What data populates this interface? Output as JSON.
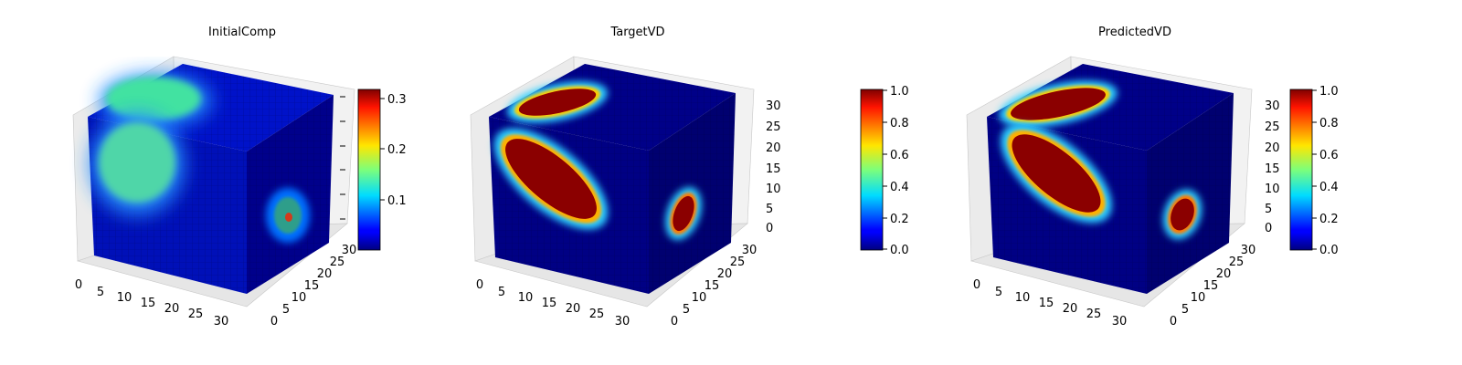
{
  "chart_data": [
    {
      "type": "voxel3d",
      "title": "InitialComp",
      "axis_range": [
        0,
        32
      ],
      "x_ticks": [
        "0",
        "5",
        "10",
        "15",
        "20",
        "25",
        "30"
      ],
      "y_ticks": [
        "0",
        "5",
        "10",
        "15",
        "20",
        "25",
        "30"
      ],
      "z_ticks": [],
      "colorbar": {
        "colormap": "jet",
        "range": [
          0,
          0.33
        ],
        "ticks": [
          "0.1",
          "0.2",
          "0.3"
        ]
      },
      "face_colors": {
        "background": "#00008b",
        "blob_top": "#43e2a1",
        "blob_front": "#4fd6a8",
        "blob_right": "#2f9e8a"
      }
    },
    {
      "type": "voxel3d",
      "title": "TargetVD",
      "axis_range": [
        0,
        32
      ],
      "x_ticks": [
        "0",
        "5",
        "10",
        "15",
        "20",
        "25",
        "30"
      ],
      "y_ticks": [
        "0",
        "5",
        "10",
        "15",
        "20",
        "25",
        "30"
      ],
      "z_ticks": [
        "0",
        "5",
        "10",
        "15",
        "20",
        "25",
        "30"
      ],
      "colorbar": {
        "colormap": "jet",
        "range": [
          0,
          1
        ],
        "ticks": [
          "0.0",
          "0.2",
          "0.4",
          "0.6",
          "0.8",
          "1.0"
        ]
      },
      "face_colors": {
        "background": "#00007f",
        "blob_fill": "#8b0000",
        "blob_edge": "#2fd0ff"
      }
    },
    {
      "type": "voxel3d",
      "title": "PredictedVD",
      "axis_range": [
        0,
        32
      ],
      "x_ticks": [
        "0",
        "5",
        "10",
        "15",
        "20",
        "25",
        "30"
      ],
      "y_ticks": [
        "0",
        "5",
        "10",
        "15",
        "20",
        "25",
        "30"
      ],
      "z_ticks": [
        "0",
        "5",
        "10",
        "15",
        "20",
        "25",
        "30"
      ],
      "colorbar": {
        "colormap": "jet",
        "range": [
          0,
          1
        ],
        "ticks": [
          "0.0",
          "0.2",
          "0.4",
          "0.6",
          "0.8",
          "1.0"
        ]
      },
      "face_colors": {
        "background": "#00007f",
        "blob_fill": "#8b0000",
        "blob_edge": "#2fd0ff"
      }
    }
  ]
}
